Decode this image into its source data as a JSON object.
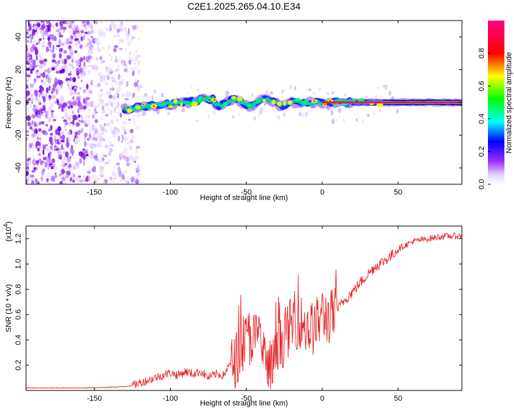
{
  "title": "C2E1.2025.265.04.10.E34",
  "chart_data": [
    {
      "type": "heatmap",
      "panel": "spectrogram",
      "xlabel": "Height of straight line (km)",
      "ylabel": "Frequency (Hz)",
      "xlim": [
        -195,
        92
      ],
      "ylim": [
        -50,
        50
      ],
      "x_ticks": [
        -150,
        -100,
        -50,
        0,
        50
      ],
      "y_ticks": [
        -40,
        -20,
        0,
        20,
        40
      ],
      "colorbar": {
        "label": "Normalized spectral amplitude",
        "range": [
          0.0,
          1.0
        ],
        "ticks": [
          "0.0",
          "0.2",
          "0.4",
          "0.6",
          "0.8"
        ],
        "colors": [
          "#ffffff",
          "#e3d0ff",
          "#9b30ff",
          "#0000ff",
          "#00ffff",
          "#00ff00",
          "#ffff00",
          "#ff0000",
          "#ff0080"
        ]
      },
      "features": {
        "noise_region_x": [
          -195,
          -120
        ],
        "signal_line_x": [
          -130,
          92
        ],
        "signal_center_frequency_hz": 0
      }
    },
    {
      "type": "line",
      "panel": "snr",
      "xlabel": "Height of straight line (km)",
      "ylabel": "SNR (10 * v/v)",
      "scale_note": "(x10",
      "scale_exp": "4",
      "scale_close": ")",
      "xlim": [
        -195,
        92
      ],
      "ylim": [
        0,
        1.3
      ],
      "x_ticks": [
        -150,
        -100,
        -50,
        0,
        50
      ],
      "y_ticks": [
        "0.2",
        "0.4",
        "0.6",
        "0.8",
        "1.0",
        "1.2"
      ],
      "series": [
        {
          "name": "SNR",
          "color": "#e8252a",
          "x": [
            -195,
            -180,
            -160,
            -140,
            -130,
            -125,
            -120,
            -115,
            -110,
            -105,
            -100,
            -95,
            -90,
            -85,
            -80,
            -75,
            -70,
            -65,
            -60,
            -55,
            -50,
            -45,
            -40,
            -35,
            -30,
            -25,
            -20,
            -15,
            -10,
            -5,
            0,
            5,
            10,
            15,
            20,
            25,
            30,
            35,
            40,
            45,
            50,
            55,
            60,
            70,
            80,
            92
          ],
          "values": [
            0.02,
            0.02,
            0.02,
            0.025,
            0.03,
            0.04,
            0.06,
            0.08,
            0.1,
            0.12,
            0.14,
            0.12,
            0.15,
            0.13,
            0.15,
            0.1,
            0.13,
            0.12,
            0.22,
            0.3,
            0.42,
            0.45,
            0.38,
            0.15,
            0.3,
            0.45,
            0.55,
            0.58,
            0.5,
            0.52,
            0.62,
            0.6,
            0.64,
            0.72,
            0.78,
            0.85,
            0.92,
            0.98,
            1.02,
            1.06,
            1.12,
            1.15,
            1.18,
            1.2,
            1.22,
            1.22
          ]
        }
      ]
    }
  ]
}
